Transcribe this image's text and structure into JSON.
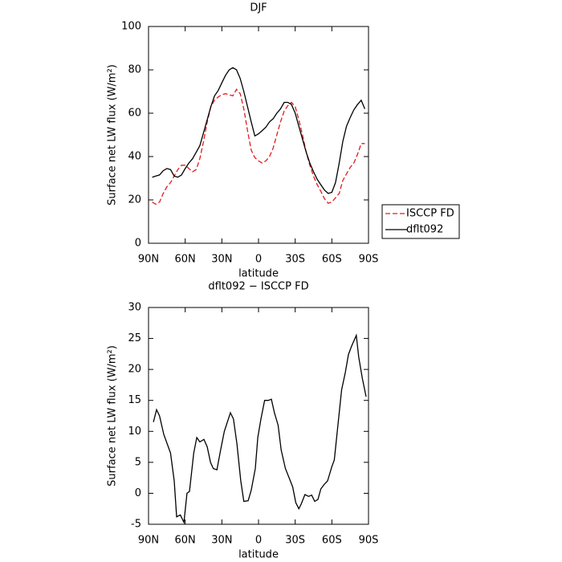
{
  "chart_data": [
    {
      "type": "line",
      "title": "DJF",
      "x_label": "latitude",
      "y_label": "Surface net LW flux (W/m²)",
      "x": [
        87,
        84,
        81,
        78,
        75,
        72,
        69,
        66,
        63,
        60,
        57,
        54,
        51,
        48,
        45,
        42,
        39,
        36,
        33,
        30,
        27,
        24,
        21,
        18,
        15,
        12,
        9,
        6,
        3,
        0,
        -3,
        -6,
        -9,
        -12,
        -15,
        -18,
        -21,
        -24,
        -27,
        -30,
        -33,
        -36,
        -39,
        -42,
        -45,
        -48,
        -51,
        -54,
        -57,
        -60,
        -63,
        -66,
        -69,
        -72,
        -75,
        -78,
        -81,
        -84,
        -87
      ],
      "series": [
        {
          "name": "ISCCP FD",
          "color": "#e31a1c",
          "style": "dashed",
          "values": [
            19,
            18,
            19,
            23,
            26,
            28,
            31,
            34,
            36,
            36,
            34.5,
            33,
            34,
            39,
            47,
            56,
            63,
            66,
            67.5,
            68.5,
            69,
            68.5,
            68,
            71,
            69,
            62,
            52,
            43,
            39.5,
            38,
            37,
            38,
            40,
            44,
            50,
            56,
            61,
            63.5,
            65,
            63,
            57,
            50,
            42,
            36,
            31,
            27,
            24,
            20.5,
            18.5,
            19,
            21,
            23,
            29,
            32,
            35,
            37,
            41,
            46,
            46
          ]
        },
        {
          "name": "dflt092",
          "color": "#000000",
          "style": "solid",
          "values": [
            30.5,
            31,
            31.5,
            33.5,
            34.5,
            34,
            31,
            30.5,
            31.5,
            34.5,
            37,
            39,
            42,
            45,
            51,
            57,
            63,
            68,
            70.5,
            74,
            77.5,
            80,
            81,
            80,
            76,
            70,
            63,
            56,
            49.5,
            50.5,
            52,
            53.5,
            56,
            57.5,
            60,
            62,
            65,
            65,
            64,
            60,
            54,
            48,
            42,
            37,
            33,
            29.5,
            27,
            24.5,
            23,
            23.5,
            28,
            37,
            47,
            54,
            58,
            61.5,
            64,
            66,
            62
          ]
        }
      ],
      "xlim": [
        90,
        -90
      ],
      "xticks": [
        {
          "value": 90,
          "label": "90N"
        },
        {
          "value": 60,
          "label": "60N"
        },
        {
          "value": 30,
          "label": "30N"
        },
        0,
        {
          "value": -30,
          "label": "30S"
        },
        {
          "value": -60,
          "label": "60S"
        },
        {
          "value": -90,
          "label": "90S"
        }
      ],
      "ylim": [
        0,
        100
      ],
      "yticks": [
        0,
        20,
        40,
        60,
        80,
        100
      ],
      "legend": "right"
    },
    {
      "type": "line",
      "title": "dflt092 − ISCCP FD",
      "x_label": "latitude",
      "y_label": "Surface net LW flux (W/m²)",
      "x": [
        86,
        83.4,
        81,
        77.5,
        72,
        69,
        67,
        64,
        61,
        58.5,
        56.5,
        53,
        50.5,
        48,
        44.7,
        42,
        39.3,
        37,
        34,
        31,
        28,
        23,
        20.5,
        17.7,
        14.5,
        12,
        8.5,
        6,
        2.6,
        0.6,
        -2,
        -5,
        -8,
        -10.5,
        -13,
        -16,
        -18.5,
        -22,
        -25,
        -28,
        -30.5,
        -33,
        -35,
        -38,
        -41,
        -43.5,
        -46,
        -48.6,
        -51,
        -54,
        -56.5,
        -60,
        -62,
        -65,
        -68,
        -71,
        -73.6,
        -76,
        -80,
        -82,
        -85,
        -88
      ],
      "values": [
        11.5,
        13.5,
        12.5,
        9.5,
        6.5,
        2,
        -3.8,
        -3.5,
        -4.7,
        0,
        0.3,
        6.5,
        9,
        8.3,
        8.7,
        7.5,
        5,
        4,
        3.8,
        7,
        10,
        13,
        12,
        8,
        2,
        -1.3,
        -1.2,
        0.5,
        4,
        9,
        12,
        15,
        15,
        15.2,
        13,
        11,
        7,
        4,
        2.5,
        1,
        -1.5,
        -2.5,
        -1.7,
        -0.2,
        -0.5,
        -0.3,
        -1.3,
        -1,
        0.7,
        1.5,
        2,
        4.3,
        5.4,
        11,
        16.7,
        19.5,
        22.4,
        23.7,
        25.5,
        22,
        18.5,
        15.6
      ],
      "color": "#000000",
      "xlim": [
        90,
        -90
      ],
      "xticks": [
        {
          "value": 90,
          "label": "90N"
        },
        {
          "value": 60,
          "label": "60N"
        },
        {
          "value": 30,
          "label": "30N"
        },
        0,
        {
          "value": -30,
          "label": "30S"
        },
        {
          "value": -60,
          "label": "60S"
        },
        {
          "value": -90,
          "label": "90S"
        }
      ],
      "ylim": [
        -5,
        30
      ],
      "yticks": [
        -5,
        0,
        5,
        10,
        15,
        20,
        25,
        30
      ]
    }
  ]
}
